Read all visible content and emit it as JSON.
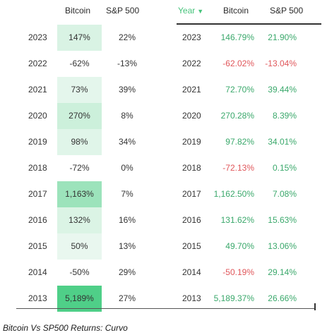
{
  "caption": "Bitcoin Vs SP500 Returns: Curvo",
  "left_table": {
    "headers": {
      "bitcoin": "Bitcoin",
      "sp500": "S&P 500"
    },
    "heat_colors": {
      "low": "#f7fbf8",
      "high": "#4fcf88"
    }
  },
  "right_table": {
    "headers": {
      "year": "Year",
      "sort_icon": "caret-down-icon",
      "bitcoin": "Bitcoin",
      "sp500": "S&P 500"
    },
    "colors": {
      "positive": "#3aa86b",
      "negative": "#e0565a"
    }
  },
  "chart_data": {
    "type": "table",
    "rows": [
      {
        "year": "2023",
        "btc_rounded": "147%",
        "sp_rounded": "22%",
        "btc_exact": "146.79%",
        "sp_exact": "21.90%",
        "btc_value": 146.79,
        "sp_value": 21.9
      },
      {
        "year": "2022",
        "btc_rounded": "-62%",
        "sp_rounded": "-13%",
        "btc_exact": "-62.02%",
        "sp_exact": "-13.04%",
        "btc_value": -62.02,
        "sp_value": -13.04
      },
      {
        "year": "2021",
        "btc_rounded": "73%",
        "sp_rounded": "39%",
        "btc_exact": "72.70%",
        "sp_exact": "39.44%",
        "btc_value": 72.7,
        "sp_value": 39.44
      },
      {
        "year": "2020",
        "btc_rounded": "270%",
        "sp_rounded": "8%",
        "btc_exact": "270.28%",
        "sp_exact": "8.39%",
        "btc_value": 270.28,
        "sp_value": 8.39
      },
      {
        "year": "2019",
        "btc_rounded": "98%",
        "sp_rounded": "34%",
        "btc_exact": "97.82%",
        "sp_exact": "34.01%",
        "btc_value": 97.82,
        "sp_value": 34.01
      },
      {
        "year": "2018",
        "btc_rounded": "-72%",
        "sp_rounded": "0%",
        "btc_exact": "-72.13%",
        "sp_exact": "0.15%",
        "btc_value": -72.13,
        "sp_value": 0.15
      },
      {
        "year": "2017",
        "btc_rounded": "1,163%",
        "sp_rounded": "7%",
        "btc_exact": "1,162.50%",
        "sp_exact": "7.08%",
        "btc_value": 1162.5,
        "sp_value": 7.08
      },
      {
        "year": "2016",
        "btc_rounded": "132%",
        "sp_rounded": "16%",
        "btc_exact": "131.62%",
        "sp_exact": "15.63%",
        "btc_value": 131.62,
        "sp_value": 15.63
      },
      {
        "year": "2015",
        "btc_rounded": "50%",
        "sp_rounded": "13%",
        "btc_exact": "49.70%",
        "sp_exact": "13.06%",
        "btc_value": 49.7,
        "sp_value": 13.06
      },
      {
        "year": "2014",
        "btc_rounded": "-50%",
        "sp_rounded": "29%",
        "btc_exact": "-50.19%",
        "sp_exact": "29.14%",
        "btc_value": -50.19,
        "sp_value": 29.14
      },
      {
        "year": "2013",
        "btc_rounded": "5,189%",
        "sp_rounded": "27%",
        "btc_exact": "5,189.37%",
        "sp_exact": "26.66%",
        "btc_value": 5189.37,
        "sp_value": 26.66
      }
    ]
  }
}
